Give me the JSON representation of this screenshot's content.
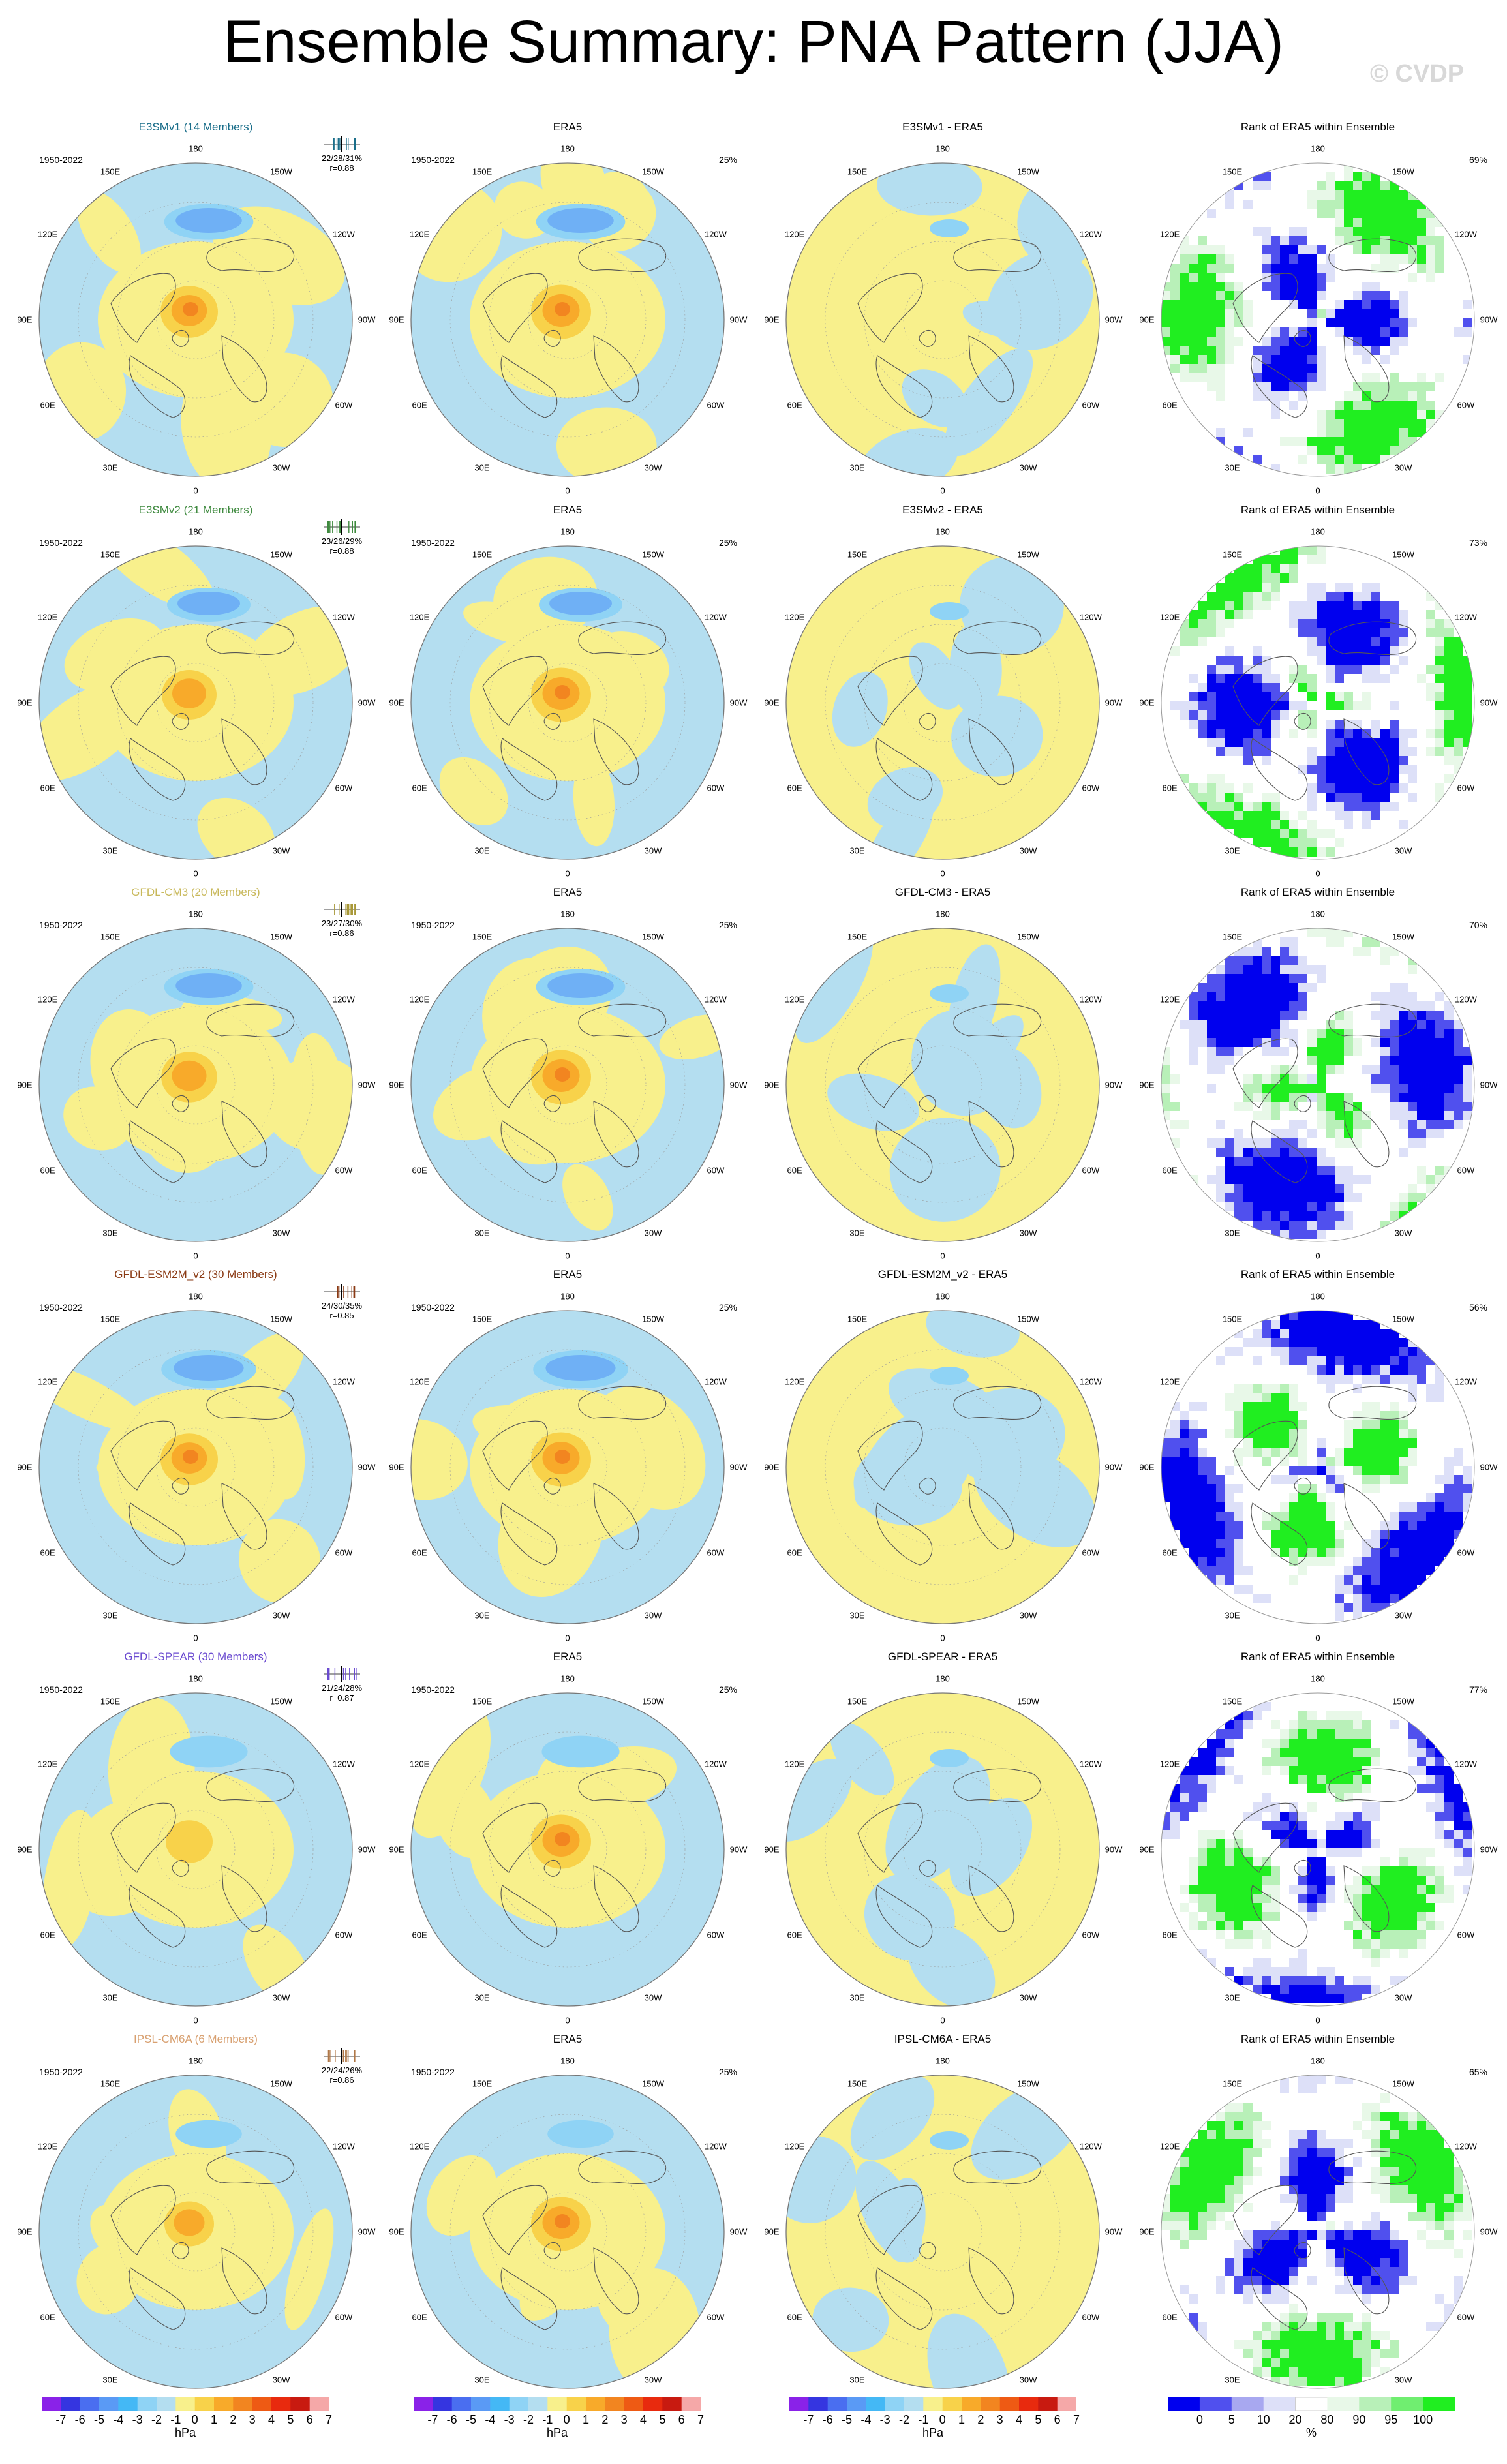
{
  "title": "Ensemble Summary: PNA Pattern (JJA)",
  "watermark": "© CVDP",
  "period": "1950-2022",
  "longitude_labels": [
    "180",
    "150E",
    "120E",
    "90E",
    "60E",
    "30E",
    "0",
    "30W",
    "60W",
    "90W",
    "120W",
    "150W"
  ],
  "colors": {
    "diff_scale": [
      "#8a22e8",
      "#3535e0",
      "#4a6ef0",
      "#5a9af5",
      "#44b8f5",
      "#8fd3f5",
      "#b4def0",
      "#f8f08c",
      "#f8d24a",
      "#f8aa2a",
      "#f28520",
      "#ee5a14",
      "#e82a0e",
      "#c81a10",
      "#f5a8a8"
    ],
    "rank_scale": [
      "#0000ee",
      "#5050ee",
      "#a8a8f0",
      "#dde0f8",
      "#ffffff",
      "#e8f8e8",
      "#b8f0b8",
      "#70ee70",
      "#20ee20"
    ]
  },
  "colorbars": {
    "hpa_ticks": [
      "-7",
      "-6",
      "-5",
      "-4",
      "-3",
      "-2",
      "-1",
      "0",
      "1",
      "2",
      "3",
      "4",
      "5",
      "6",
      "7"
    ],
    "hpa_unit": "hPa",
    "rank_ticks": [
      "0",
      "5",
      "10",
      "20",
      "80",
      "90",
      "95",
      "100"
    ],
    "rank_unit": "%"
  },
  "chart_data": {
    "type": "heatmap",
    "title": "Ensemble Summary: PNA Pattern (JJA)",
    "grid": false,
    "legend_placement": "bottom",
    "rows": [
      {
        "model": "E3SMv1",
        "ensemble_title": "E3SMv1 (14 Members)",
        "title_color": "#1a6e8a",
        "stats": [
          "22/28/31%",
          "r=0.88"
        ],
        "era5_pct": "25%",
        "diff_title": "E3SMv1 - ERA5",
        "rank_title": "Rank of ERA5 within Ensemble",
        "rank_pct": "69%",
        "ticks_color": "#1a6e8a",
        "ens_center_strength": 4.5,
        "era5_center_strength": 5,
        "aleutian_low_strength": -2.2
      },
      {
        "model": "E3SMv2",
        "ensemble_title": "E3SMv2 (21 Members)",
        "title_color": "#3f8a3f",
        "stats": [
          "23/26/29%",
          "r=0.88"
        ],
        "era5_pct": "25%",
        "diff_title": "E3SMv2 - ERA5",
        "rank_title": "Rank of ERA5 within Ensemble",
        "rank_pct": "73%",
        "ticks_color": "#3f8a3f",
        "ens_center_strength": 4,
        "era5_center_strength": 5,
        "aleutian_low_strength": -2
      },
      {
        "model": "GFDL-CM3",
        "ensemble_title": "GFDL-CM3 (20 Members)",
        "title_color": "#c8b85a",
        "stats": [
          "23/27/30%",
          "r=0.86"
        ],
        "era5_pct": "25%",
        "diff_title": "GFDL-CM3 - ERA5",
        "rank_title": "Rank of ERA5 within Ensemble",
        "rank_pct": "70%",
        "ticks_color": "#a89838",
        "ens_center_strength": 4.2,
        "era5_center_strength": 5,
        "aleutian_low_strength": -2.2
      },
      {
        "model": "GFDL-ESM2M_v2",
        "ensemble_title": "GFDL-ESM2M_v2 (30 Members)",
        "title_color": "#8a3a14",
        "stats": [
          "24/30/35%",
          "r=0.85"
        ],
        "era5_pct": "25%",
        "diff_title": "GFDL-ESM2M_v2 - ERA5",
        "rank_title": "Rank of ERA5 within Ensemble",
        "rank_pct": "56%",
        "ticks_color": "#8a3a14",
        "ens_center_strength": 4.5,
        "era5_center_strength": 5,
        "aleutian_low_strength": -2.4
      },
      {
        "model": "GFDL-SPEAR",
        "ensemble_title": "GFDL-SPEAR (30 Members)",
        "title_color": "#6a4ad0",
        "stats": [
          "21/24/28%",
          "r=0.87"
        ],
        "era5_pct": "25%",
        "diff_title": "GFDL-SPEAR - ERA5",
        "rank_title": "Rank of ERA5 within Ensemble",
        "rank_pct": "77%",
        "ticks_color": "#6a4ad0",
        "ens_center_strength": 2.5,
        "era5_center_strength": 5,
        "aleutian_low_strength": -1.8
      },
      {
        "model": "IPSL-CM6A",
        "ensemble_title": "IPSL-CM6A (6 Members)",
        "title_color": "#d8a070",
        "stats": [
          "22/24/26%",
          "r=0.86"
        ],
        "era5_pct": "25%",
        "diff_title": "IPSL-CM6A - ERA5",
        "rank_title": "Rank of ERA5 within Ensemble",
        "rank_pct": "65%",
        "ticks_color": "#b07848",
        "ens_center_strength": 3,
        "era5_center_strength": 5,
        "aleutian_low_strength": -1.4
      }
    ],
    "era5_title": "ERA5"
  }
}
